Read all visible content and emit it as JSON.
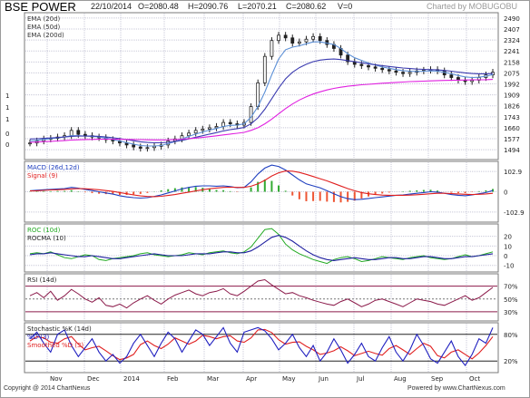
{
  "header": {
    "title": "BSE POWER",
    "date": "22/10/2014",
    "open": "O=2080.48",
    "high": "H=2090.76",
    "low": "L=2070.21",
    "close": "C=2080.62",
    "volume": "V=0",
    "charted_by": "Charted by MOBUGOBU"
  },
  "footer": {
    "copyright": "Copyright @ 2014 ChartNexus",
    "powered": "Powered by www.ChartNexus.com"
  },
  "colors": {
    "ema20": "#5b8fd6",
    "ema50": "#3b3bb0",
    "ema200": "#e020e0",
    "candle": "#222222",
    "macd": "#1f3fbf",
    "signal": "#e02020",
    "hist_pos": "#33aa33",
    "hist_neg": "#ee5533",
    "roc": "#22aa22",
    "rocma": "#2020a0",
    "rsi": "#8b1a4a",
    "rsi_band": "#8b1a4a",
    "stoch_k": "#2020c0",
    "stoch_d": "#e02020",
    "grid": "#c8c8d8"
  },
  "chart_data": [
    {
      "type": "candlestick",
      "title": "BSE POWER",
      "legend": [
        "EMA (20d)",
        "EMA (50d)",
        "EMA (200d)"
      ],
      "legend_position": "top-left",
      "x_tick_labels": [
        "Nov",
        "Dec",
        "2014",
        "Feb",
        "Mar",
        "Apr",
        "May",
        "Jun",
        "Jul",
        "Aug",
        "Sep",
        "Oct"
      ],
      "y_tick_labels": [
        "2490",
        "2407",
        "2324",
        "2241",
        "2158",
        "2075",
        "1992",
        "1909",
        "1826",
        "1743",
        "1660",
        "1577",
        "1494"
      ],
      "left_axis_labels": [
        "1",
        "1",
        "1",
        "0",
        "0"
      ],
      "ylim": [
        1440,
        2510
      ],
      "grid": true,
      "close": [
        1545,
        1560,
        1575,
        1580,
        1590,
        1600,
        1640,
        1610,
        1600,
        1590,
        1585,
        1570,
        1560,
        1545,
        1530,
        1515,
        1505,
        1510,
        1520,
        1530,
        1560,
        1575,
        1600,
        1620,
        1640,
        1650,
        1660,
        1670,
        1700,
        1690,
        1680,
        1700,
        1820,
        2000,
        2200,
        2320,
        2360,
        2340,
        2300,
        2310,
        2330,
        2350,
        2320,
        2290,
        2260,
        2210,
        2160,
        2140,
        2130,
        2120,
        2110,
        2100,
        2090,
        2080,
        2070,
        2080,
        2090,
        2095,
        2100,
        2090,
        2060,
        2040,
        2020,
        2010,
        2020,
        2040,
        2060,
        2080
      ],
      "ema_20": [
        1560,
        1565,
        1572,
        1578,
        1584,
        1590,
        1600,
        1600,
        1598,
        1594,
        1590,
        1582,
        1572,
        1560,
        1548,
        1536,
        1526,
        1522,
        1522,
        1526,
        1540,
        1555,
        1575,
        1595,
        1612,
        1628,
        1642,
        1655,
        1670,
        1678,
        1680,
        1690,
        1740,
        1820,
        1930,
        2060,
        2180,
        2250,
        2270,
        2280,
        2295,
        2310,
        2310,
        2300,
        2290,
        2260,
        2220,
        2190,
        2170,
        2150,
        2135,
        2120,
        2110,
        2100,
        2092,
        2088,
        2086,
        2088,
        2090,
        2088,
        2080,
        2068,
        2055,
        2045,
        2040,
        2042,
        2050,
        2062
      ],
      "ema_50": [
        1575,
        1577,
        1580,
        1583,
        1586,
        1590,
        1595,
        1597,
        1598,
        1597,
        1595,
        1591,
        1585,
        1578,
        1570,
        1562,
        1554,
        1549,
        1546,
        1546,
        1550,
        1556,
        1565,
        1576,
        1588,
        1600,
        1612,
        1623,
        1636,
        1646,
        1653,
        1662,
        1690,
        1735,
        1800,
        1880,
        1960,
        2030,
        2080,
        2115,
        2140,
        2160,
        2172,
        2178,
        2180,
        2176,
        2168,
        2160,
        2152,
        2144,
        2137,
        2130,
        2124,
        2118,
        2112,
        2108,
        2104,
        2102,
        2100,
        2098,
        2094,
        2088,
        2081,
        2075,
        2070,
        2068,
        2068,
        2070
      ],
      "ema_200": [
        1550,
        1552,
        1555,
        1557,
        1560,
        1563,
        1567,
        1569,
        1571,
        1572,
        1573,
        1574,
        1574,
        1573,
        1572,
        1571,
        1570,
        1569,
        1568,
        1568,
        1569,
        1571,
        1574,
        1578,
        1582,
        1587,
        1593,
        1599,
        1606,
        1612,
        1618,
        1625,
        1640,
        1660,
        1690,
        1725,
        1765,
        1805,
        1840,
        1870,
        1895,
        1915,
        1932,
        1946,
        1958,
        1967,
        1974,
        1980,
        1985,
        1989,
        1993,
        1997,
        2000,
        2003,
        2006,
        2009,
        2011,
        2013,
        2015,
        2017,
        2018,
        2019,
        2020,
        2021,
        2022,
        2023,
        2024,
        2026
      ]
    },
    {
      "type": "line",
      "title": "MACD (26d,12d)",
      "legend": [
        "MACD (26d,12d)",
        "Signal (9)"
      ],
      "y_tick_labels": [
        "102.9",
        "0",
        "-102.9"
      ],
      "ylim": [
        -140,
        140
      ],
      "macd": [
        5,
        8,
        10,
        12,
        14,
        16,
        22,
        18,
        12,
        6,
        0,
        -6,
        -12,
        -20,
        -26,
        -30,
        -32,
        -30,
        -24,
        -16,
        -6,
        4,
        14,
        22,
        28,
        30,
        30,
        28,
        30,
        26,
        20,
        22,
        50,
        90,
        120,
        135,
        128,
        110,
        85,
        60,
        40,
        30,
        20,
        5,
        -10,
        -25,
        -35,
        -40,
        -38,
        -34,
        -30,
        -26,
        -22,
        -18,
        -16,
        -12,
        -8,
        -4,
        0,
        -2,
        -8,
        -14,
        -18,
        -20,
        -16,
        -10,
        -4,
        6
      ],
      "signal": [
        4,
        5,
        7,
        9,
        10,
        12,
        14,
        16,
        15,
        13,
        10,
        6,
        2,
        -4,
        -10,
        -16,
        -21,
        -24,
        -25,
        -23,
        -19,
        -14,
        -8,
        -2,
        4,
        10,
        15,
        19,
        22,
        23,
        22,
        22,
        28,
        40,
        58,
        80,
        96,
        105,
        104,
        98,
        88,
        77,
        66,
        55,
        42,
        29,
        16,
        5,
        -4,
        -10,
        -14,
        -17,
        -18,
        -18,
        -18,
        -17,
        -15,
        -13,
        -10,
        -8,
        -8,
        -9,
        -11,
        -13,
        -14,
        -13,
        -11,
        -8
      ]
    },
    {
      "type": "line",
      "title": "ROC (10d)",
      "legend": [
        "ROC (10d)",
        "ROCMA (10)"
      ],
      "y_tick_labels": [
        "20",
        "10",
        "0",
        "-10"
      ],
      "ylim": [
        -14,
        30
      ],
      "roc": [
        2,
        3,
        2,
        4,
        1,
        -2,
        -3,
        -1,
        1,
        0,
        -4,
        -5,
        -3,
        -2,
        -1,
        0,
        2,
        3,
        1,
        0,
        -1,
        0,
        1,
        3,
        2,
        1,
        3,
        4,
        5,
        3,
        2,
        4,
        9,
        18,
        27,
        28,
        22,
        12,
        6,
        2,
        -1,
        -4,
        -6,
        -8,
        -4,
        -2,
        -1,
        -3,
        -6,
        -5,
        -3,
        -1,
        -2,
        -3,
        -4,
        -2,
        -1,
        0,
        -2,
        -3,
        -4,
        -3,
        -1,
        1,
        -1,
        0,
        2,
        4
      ],
      "rocma": [
        1,
        2,
        2,
        3,
        2,
        1,
        0,
        -1,
        -1,
        0,
        -1,
        -2,
        -3,
        -3,
        -2,
        -1,
        0,
        1,
        2,
        1,
        0,
        0,
        0,
        1,
        2,
        2,
        2,
        3,
        4,
        4,
        3,
        3,
        5,
        9,
        14,
        19,
        21,
        19,
        15,
        10,
        5,
        1,
        -2,
        -4,
        -5,
        -4,
        -3,
        -2,
        -3,
        -4,
        -4,
        -3,
        -2,
        -2,
        -3,
        -3,
        -2,
        -1,
        -1,
        -2,
        -3,
        -3,
        -2,
        -1,
        -1,
        0,
        1,
        2
      ]
    },
    {
      "type": "line",
      "title": "RSI (14d)",
      "legend": [
        "RSI (14d)"
      ],
      "y_tick_labels": [
        "70%",
        "50%",
        "30%"
      ],
      "ylim": [
        20,
        85
      ],
      "rsi": [
        55,
        60,
        52,
        62,
        48,
        55,
        65,
        58,
        50,
        45,
        52,
        40,
        38,
        42,
        36,
        44,
        50,
        55,
        48,
        42,
        50,
        56,
        60,
        64,
        58,
        55,
        60,
        62,
        66,
        58,
        55,
        62,
        70,
        78,
        80,
        72,
        65,
        58,
        60,
        55,
        52,
        48,
        45,
        42,
        40,
        46,
        50,
        44,
        38,
        42,
        48,
        50,
        46,
        42,
        38,
        44,
        50,
        48,
        46,
        42,
        40,
        45,
        50,
        55,
        48,
        52,
        60,
        68
      ]
    },
    {
      "type": "line",
      "title": "Stochastic %K (14d)",
      "legend": [
        "Stochastic %K (14d)",
        "%D (3)",
        "Smoothed %D (3)"
      ],
      "y_tick_labels": [
        "80%",
        "20%"
      ],
      "ylim": [
        0,
        100
      ],
      "k": [
        70,
        85,
        60,
        40,
        80,
        90,
        55,
        30,
        50,
        70,
        40,
        20,
        35,
        15,
        30,
        60,
        80,
        55,
        30,
        60,
        85,
        70,
        40,
        65,
        90,
        80,
        55,
        75,
        95,
        60,
        40,
        85,
        90,
        95,
        88,
        70,
        45,
        60,
        80,
        50,
        30,
        55,
        20,
        40,
        70,
        45,
        15,
        35,
        60,
        30,
        20,
        50,
        75,
        40,
        20,
        45,
        80,
        55,
        25,
        15,
        40,
        65,
        30,
        10,
        35,
        70,
        60,
        95
      ],
      "d": [
        65,
        75,
        72,
        62,
        60,
        70,
        75,
        58,
        45,
        50,
        53,
        43,
        32,
        23,
        27,
        35,
        57,
        65,
        55,
        48,
        58,
        72,
        65,
        58,
        65,
        78,
        75,
        70,
        75,
        77,
        65,
        62,
        72,
        90,
        91,
        84,
        68,
        58,
        62,
        63,
        53,
        45,
        35,
        38,
        43,
        52,
        43,
        32,
        37,
        42,
        37,
        33,
        48,
        55,
        45,
        35,
        48,
        60,
        53,
        32,
        27,
        40,
        45,
        35,
        25,
        38,
        55,
        75
      ]
    }
  ]
}
